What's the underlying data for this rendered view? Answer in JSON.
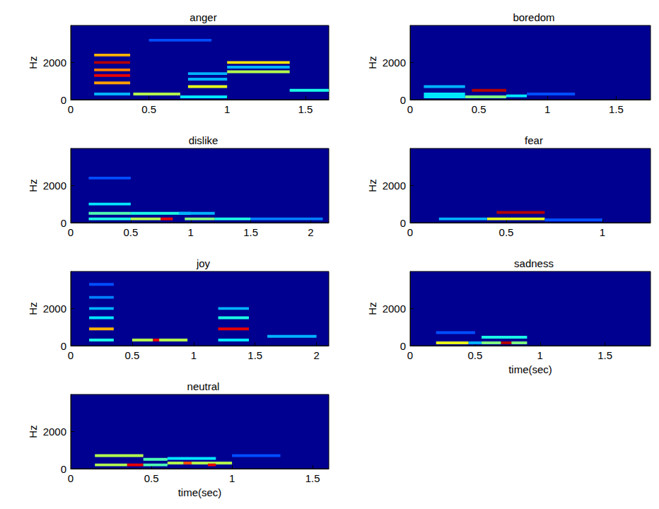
{
  "chart_data": [
    {
      "type": "heatmap",
      "title": "anger",
      "y_label": "Hz",
      "xlim": [
        0,
        1.65
      ],
      "xticks": [
        0,
        0.5,
        1,
        1.5
      ],
      "ylim": [
        0,
        4000
      ],
      "yticks": [
        0,
        2000
      ],
      "color_range": [
        0,
        1
      ],
      "cells": [
        [
          0.15,
          0.38,
          830,
          980,
          0.72
        ],
        [
          0.15,
          0.38,
          1230,
          1380,
          0.9
        ],
        [
          0.15,
          0.38,
          1530,
          1680,
          0.75
        ],
        [
          0.15,
          0.38,
          1930,
          2080,
          0.95
        ],
        [
          0.15,
          0.38,
          2330,
          2480,
          0.7
        ],
        [
          0.15,
          0.38,
          230,
          380,
          0.3
        ],
        [
          0.4,
          0.7,
          230,
          380,
          0.55
        ],
        [
          0.7,
          1.0,
          80,
          230,
          0.35
        ],
        [
          0.75,
          1.0,
          630,
          780,
          0.6
        ],
        [
          0.75,
          1.0,
          1030,
          1180,
          0.3
        ],
        [
          0.75,
          1.0,
          1330,
          1480,
          0.3
        ],
        [
          1.0,
          1.4,
          1430,
          1580,
          0.55
        ],
        [
          1.0,
          1.4,
          1930,
          2080,
          0.65
        ],
        [
          1.0,
          1.4,
          1680,
          1830,
          0.3
        ],
        [
          1.4,
          1.65,
          430,
          580,
          0.4
        ],
        [
          0.5,
          0.9,
          3130,
          3280,
          0.2
        ]
      ]
    },
    {
      "type": "heatmap",
      "title": "boredom",
      "y_label": "Hz",
      "xlim": [
        0,
        1.75
      ],
      "xticks": [
        0,
        0.5,
        1,
        1.5
      ],
      "ylim": [
        0,
        4000
      ],
      "yticks": [
        0,
        2000
      ],
      "color_range": [
        0,
        1
      ],
      "cells": [
        [
          0.45,
          0.7,
          430,
          580,
          0.95
        ],
        [
          0.4,
          0.7,
          80,
          230,
          0.5
        ],
        [
          0.1,
          0.4,
          630,
          780,
          0.3
        ],
        [
          0.1,
          0.4,
          230,
          380,
          0.35
        ],
        [
          0.1,
          0.4,
          80,
          230,
          0.35
        ],
        [
          0.7,
          0.85,
          130,
          280,
          0.35
        ],
        [
          0.85,
          1.2,
          230,
          380,
          0.2
        ]
      ]
    },
    {
      "type": "heatmap",
      "title": "dislike",
      "y_label": "Hz",
      "xlim": [
        0,
        2.15
      ],
      "xticks": [
        0,
        0.5,
        1,
        1.5,
        2
      ],
      "ylim": [
        0,
        4000
      ],
      "yticks": [
        0,
        2000
      ],
      "color_range": [
        0,
        1
      ],
      "cells": [
        [
          0.15,
          0.5,
          130,
          280,
          0.4
        ],
        [
          0.15,
          0.5,
          430,
          580,
          0.45
        ],
        [
          0.15,
          0.5,
          930,
          1080,
          0.35
        ],
        [
          0.15,
          0.5,
          2330,
          2480,
          0.2
        ],
        [
          0.5,
          0.75,
          130,
          280,
          0.55
        ],
        [
          0.75,
          0.85,
          130,
          280,
          0.9
        ],
        [
          0.5,
          1.0,
          430,
          580,
          0.4
        ],
        [
          0.95,
          1.2,
          130,
          280,
          0.5
        ],
        [
          0.9,
          1.2,
          430,
          580,
          0.3
        ],
        [
          1.2,
          1.5,
          130,
          280,
          0.4
        ],
        [
          1.5,
          2.1,
          130,
          280,
          0.25
        ]
      ]
    },
    {
      "type": "heatmap",
      "title": "fear",
      "y_label": "Hz",
      "xlim": [
        0,
        1.25
      ],
      "xticks": [
        0,
        0.5,
        1
      ],
      "ylim": [
        0,
        4000
      ],
      "yticks": [
        0,
        2000
      ],
      "color_range": [
        0,
        1
      ],
      "cells": [
        [
          0.45,
          0.7,
          480,
          630,
          0.95
        ],
        [
          0.4,
          0.7,
          130,
          280,
          0.6
        ],
        [
          0.15,
          0.4,
          130,
          280,
          0.3
        ],
        [
          0.7,
          1.0,
          80,
          230,
          0.2
        ]
      ]
    },
    {
      "type": "heatmap",
      "title": "joy",
      "y_label": "Hz",
      "xlim": [
        0,
        2.1
      ],
      "xticks": [
        0,
        0.5,
        1,
        1.5,
        2
      ],
      "ylim": [
        0,
        4000
      ],
      "yticks": [
        0,
        2000
      ],
      "color_range": [
        0,
        1
      ],
      "cells": [
        [
          0.15,
          0.35,
          830,
          980,
          0.7
        ],
        [
          0.15,
          0.35,
          1430,
          1580,
          0.35
        ],
        [
          0.15,
          0.35,
          1930,
          2080,
          0.3
        ],
        [
          0.15,
          0.35,
          2530,
          2680,
          0.25
        ],
        [
          0.15,
          0.35,
          3230,
          3380,
          0.2
        ],
        [
          0.15,
          0.35,
          230,
          380,
          0.4
        ],
        [
          0.5,
          0.67,
          230,
          380,
          0.55
        ],
        [
          0.67,
          0.72,
          230,
          380,
          0.9
        ],
        [
          0.72,
          0.95,
          230,
          380,
          0.55
        ],
        [
          1.2,
          1.45,
          830,
          980,
          0.9
        ],
        [
          1.2,
          1.45,
          1430,
          1580,
          0.4
        ],
        [
          1.2,
          1.45,
          1930,
          2080,
          0.3
        ],
        [
          1.2,
          1.45,
          230,
          380,
          0.35
        ],
        [
          1.6,
          2.0,
          430,
          580,
          0.3
        ]
      ]
    },
    {
      "type": "heatmap",
      "title": "sadness",
      "x_label": "time(sec)",
      "y_label": "Hz",
      "xlim": [
        0,
        1.85
      ],
      "xticks": [
        0,
        0.5,
        1,
        1.5
      ],
      "ylim": [
        0,
        4000
      ],
      "yticks": [
        0,
        2000
      ],
      "color_range": [
        0,
        1
      ],
      "cells": [
        [
          0.2,
          0.45,
          80,
          230,
          0.6
        ],
        [
          0.55,
          0.7,
          80,
          230,
          0.5
        ],
        [
          0.7,
          0.78,
          80,
          230,
          0.95
        ],
        [
          0.78,
          0.9,
          80,
          230,
          0.5
        ],
        [
          0.55,
          0.9,
          380,
          530,
          0.4
        ],
        [
          0.45,
          0.55,
          80,
          230,
          0.3
        ],
        [
          0.2,
          0.5,
          630,
          780,
          0.2
        ]
      ]
    },
    {
      "type": "heatmap",
      "title": "neutral",
      "x_label": "time(sec)",
      "y_label": "Hz",
      "xlim": [
        0,
        1.6
      ],
      "xticks": [
        0,
        0.5,
        1,
        1.5
      ],
      "ylim": [
        0,
        4000
      ],
      "yticks": [
        0,
        2000
      ],
      "color_range": [
        0,
        1
      ],
      "cells": [
        [
          0.15,
          0.45,
          630,
          780,
          0.55
        ],
        [
          0.15,
          0.35,
          130,
          280,
          0.55
        ],
        [
          0.35,
          0.45,
          130,
          280,
          0.9
        ],
        [
          0.45,
          0.6,
          430,
          580,
          0.45
        ],
        [
          0.45,
          0.6,
          130,
          280,
          0.45
        ],
        [
          0.6,
          0.7,
          230,
          380,
          0.55
        ],
        [
          0.7,
          0.75,
          230,
          380,
          0.8
        ],
        [
          0.75,
          1.0,
          230,
          380,
          0.55
        ],
        [
          0.85,
          0.9,
          130,
          280,
          0.9
        ],
        [
          0.6,
          0.9,
          480,
          630,
          0.35
        ],
        [
          1.0,
          1.3,
          630,
          780,
          0.2
        ]
      ]
    }
  ]
}
